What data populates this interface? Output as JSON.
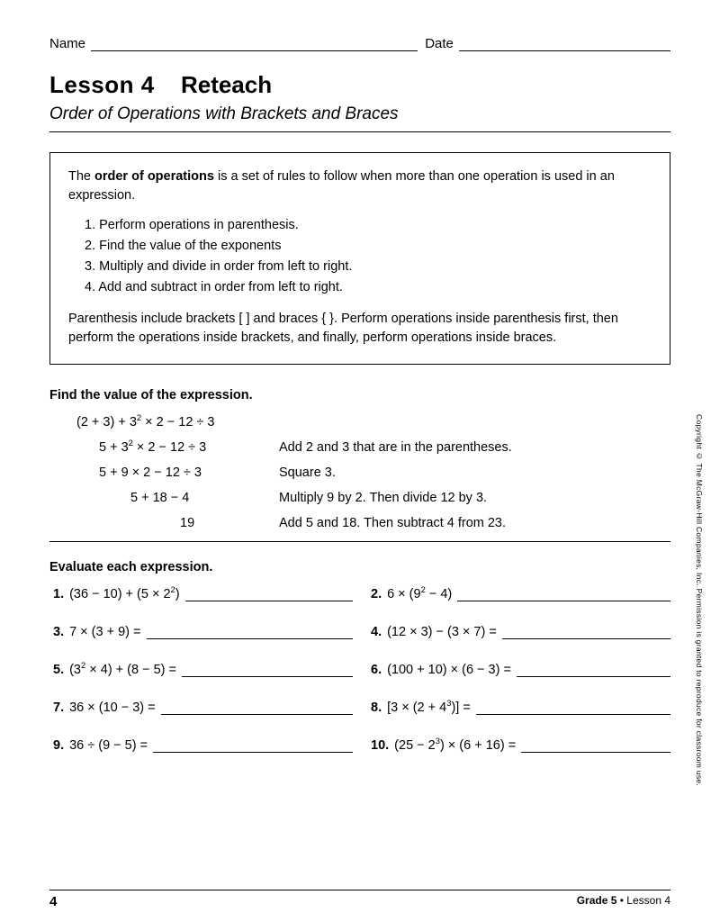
{
  "header": {
    "name_label": "Name",
    "date_label": "Date"
  },
  "title": {
    "lesson": "Lesson 4",
    "reteach": "Reteach",
    "subtitle": "Order of Operations with Brackets and Braces"
  },
  "rules": {
    "intro_pre": "The ",
    "intro_bold": "order of operations",
    "intro_post": " is a set of rules to follow when more than one operation is used in an expression.",
    "steps": [
      "1.  Perform operations in parenthesis.",
      "2.  Find the value of the exponents",
      "3.  Multiply and divide in order from left to right.",
      "4.  Add and subtract in order from left to right."
    ],
    "closing": "Parenthesis include brackets [  ] and braces {  }. Perform operations inside parenthesis first, then perform the operations inside brackets, and finally, perform operations inside braces."
  },
  "example_head": "Find the value of the expression.",
  "example": {
    "r1_expr": "(2 + 3) + 3² × 2 − 12 ÷ 3",
    "r2_expr": "5 + 3² × 2 − 12 ÷ 3",
    "r2_explain": "Add 2 and 3 that are in the parentheses.",
    "r3_expr": "5 + 9 × 2 − 12 ÷ 3",
    "r3_explain": "Square 3.",
    "r4_expr": "5 + 18 − 4",
    "r4_explain": "Multiply 9 by 2. Then divide 12 by 3.",
    "r5_expr": "19",
    "r5_explain": "Add 5 and 18. Then subtract 4 from 23."
  },
  "evaluate_head": "Evaluate each expression.",
  "problems": {
    "p1_num": "1.",
    "p1_expr": "(36 − 10) + (5 × 2²)",
    "p2_num": "2.",
    "p2_expr": "6 × (9² − 4)",
    "p3_num": "3.",
    "p3_expr": "7 × (3 + 9) =",
    "p4_num": "4.",
    "p4_expr": "(12 × 3) − (3 × 7) =",
    "p5_num": "5.",
    "p5_expr": "(3² × 4) + (8 − 5) =",
    "p6_num": "6.",
    "p6_expr": "(100 + 10) × (6 − 3) =",
    "p7_num": "7.",
    "p7_expr": "36 × (10 − 3) =",
    "p8_num": "8.",
    "p8_expr": "[3 × (2 + 4³)] =",
    "p9_num": "9.",
    "p9_expr": "36 ÷ (9 − 5) =",
    "p10_num": "10.",
    "p10_expr": "(25 − 2³) × (6 + 16) ="
  },
  "footer": {
    "page": "4",
    "grade": "Grade 5 • Lesson 4"
  },
  "copyright": "Copyright © The McGraw-Hill Companies, Inc. Permission is granted to reproduce for classroom use."
}
